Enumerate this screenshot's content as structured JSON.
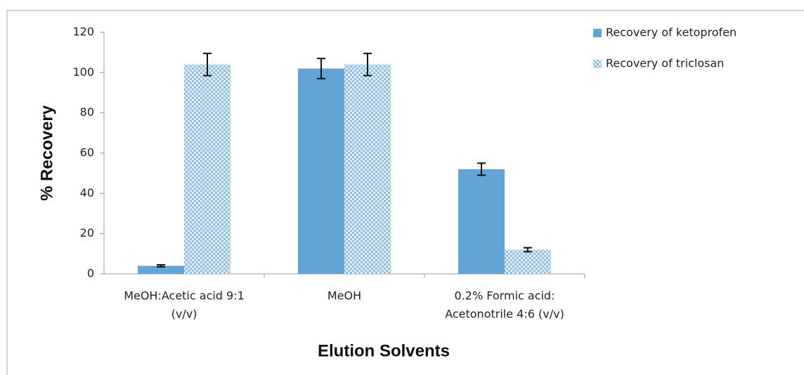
{
  "chart_data": {
    "type": "bar",
    "xlabel": "Elution Solvents",
    "ylabel": "% Recovery",
    "categories": [
      [
        "MeOH:Acetic acid 9:1",
        "(v/v)"
      ],
      [
        "MeOH"
      ],
      [
        "0.2% Formic acid:",
        "Acetonotrile 4:6 (v/v)"
      ]
    ],
    "series": [
      {
        "name": "Recovery of ketoprofen",
        "color": "#62a4d6",
        "fill_style": "solid",
        "values": [
          4,
          102,
          52
        ],
        "errors": [
          0.5,
          5,
          3
        ]
      },
      {
        "name": "Recovery of triclosan",
        "color": "#8fbde6",
        "fill_style": "checker",
        "values": [
          104,
          104,
          12
        ],
        "errors": [
          5.5,
          5.5,
          1
        ]
      }
    ],
    "ylim": [
      0,
      120
    ],
    "yticks": [
      0,
      20,
      40,
      60,
      80,
      100,
      120
    ],
    "legend": "top-right"
  }
}
